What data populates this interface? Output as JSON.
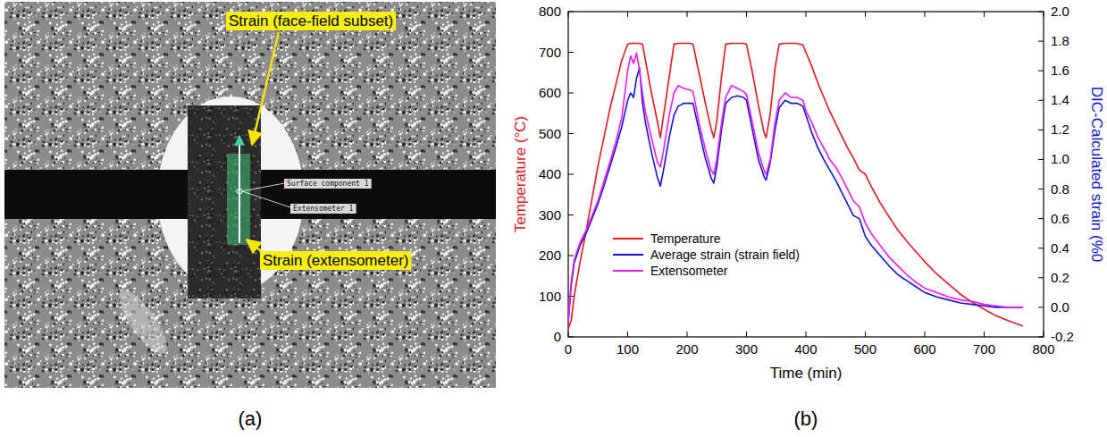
{
  "panel_labels": [
    "(a)",
    "(b)"
  ],
  "image_panel": {
    "annotations": [
      "Strain (face-field subset)",
      "Strain (extensometer)"
    ],
    "overlay_labels": [
      "Surface component 1",
      "Extensometer 1"
    ]
  },
  "chart_data": {
    "type": "line",
    "x_label": "Time (min)",
    "y_label": "Temperature (°C)",
    "y2_label": "DIC-Calculated strain (%0",
    "xlim": [
      0,
      800
    ],
    "xticks": [
      0,
      100,
      200,
      300,
      400,
      500,
      600,
      700,
      800
    ],
    "ylim": [
      0,
      800
    ],
    "yticks": [
      0,
      100,
      200,
      300,
      400,
      500,
      600,
      700,
      800
    ],
    "y2lim": [
      -0.2,
      2.0
    ],
    "y2ticks": [
      -0.2,
      {
        "value": 0,
        "label": "0.0"
      },
      0.2,
      0.4,
      0.6,
      0.8,
      {
        "value": 1,
        "label": "1.0"
      },
      1.2,
      1.4,
      1.6,
      1.8,
      {
        "value": 2,
        "label": "2.0"
      }
    ],
    "legend": "lower left",
    "x": [
      0,
      5,
      10,
      20,
      30,
      40,
      50,
      60,
      70,
      80,
      90,
      100,
      105,
      110,
      115,
      120,
      125,
      130,
      140,
      150,
      155,
      160,
      170,
      178,
      185,
      195,
      205,
      210,
      220,
      230,
      240,
      245,
      250,
      258,
      265,
      275,
      285,
      295,
      300,
      310,
      320,
      330,
      333,
      340,
      348,
      355,
      365,
      375,
      385,
      395,
      400,
      410,
      420,
      430,
      440,
      450,
      460,
      470,
      480,
      490,
      500,
      510,
      525,
      540,
      555,
      570,
      585,
      600,
      620,
      640,
      660,
      680,
      700,
      720,
      740,
      765
    ],
    "series": [
      {
        "name": "Temperature",
        "color": "#e8161b",
        "axis": "y",
        "values": [
          20,
          40,
          100,
          185,
          260,
          340,
          420,
          490,
          560,
          620,
          680,
          720,
          722,
          722,
          722,
          722,
          720,
          680,
          600,
          530,
          490,
          540,
          640,
          720,
          722,
          722,
          722,
          720,
          650,
          580,
          515,
          490,
          530,
          640,
          720,
          722,
          722,
          722,
          720,
          650,
          570,
          500,
          490,
          550,
          660,
          720,
          722,
          722,
          722,
          718,
          700,
          665,
          625,
          590,
          555,
          525,
          495,
          465,
          440,
          410,
          400,
          370,
          330,
          295,
          262,
          235,
          210,
          185,
          155,
          130,
          105,
          85,
          68,
          52,
          40,
          27
        ]
      },
      {
        "name": "Average strain (strain field)",
        "color": "#1010e0",
        "axis": "y2",
        "values": [
          -0.1,
          0.15,
          0.3,
          0.42,
          0.5,
          0.6,
          0.7,
          0.82,
          0.95,
          1.08,
          1.22,
          1.4,
          1.45,
          1.42,
          1.55,
          1.62,
          1.38,
          1.25,
          1.05,
          0.88,
          0.82,
          0.92,
          1.15,
          1.3,
          1.36,
          1.38,
          1.38,
          1.38,
          1.2,
          1.02,
          0.88,
          0.84,
          0.95,
          1.2,
          1.38,
          1.42,
          1.43,
          1.42,
          1.4,
          1.2,
          1.0,
          0.88,
          0.86,
          0.98,
          1.2,
          1.35,
          1.4,
          1.38,
          1.38,
          1.36,
          1.3,
          1.18,
          1.08,
          1.0,
          0.93,
          0.86,
          0.78,
          0.7,
          0.62,
          0.6,
          0.48,
          0.42,
          0.35,
          0.28,
          0.22,
          0.18,
          0.14,
          0.1,
          0.07,
          0.05,
          0.03,
          0.02,
          0.01,
          0.0,
          0.0,
          0.0
        ]
      },
      {
        "name": "Extensometer",
        "color": "#f019f0",
        "axis": "y2",
        "values": [
          -0.1,
          0.18,
          0.32,
          0.44,
          0.52,
          0.62,
          0.72,
          0.85,
          0.98,
          1.12,
          1.28,
          1.6,
          1.7,
          1.65,
          1.72,
          1.6,
          1.45,
          1.32,
          1.15,
          0.98,
          0.95,
          1.05,
          1.3,
          1.45,
          1.5,
          1.48,
          1.47,
          1.46,
          1.25,
          1.08,
          0.93,
          0.9,
          1.0,
          1.25,
          1.42,
          1.5,
          1.48,
          1.46,
          1.44,
          1.25,
          1.05,
          0.92,
          0.9,
          1.0,
          1.25,
          1.4,
          1.45,
          1.42,
          1.42,
          1.4,
          1.33,
          1.25,
          1.15,
          1.08,
          1.0,
          0.95,
          0.88,
          0.8,
          0.72,
          0.68,
          0.57,
          0.5,
          0.42,
          0.34,
          0.28,
          0.22,
          0.17,
          0.13,
          0.1,
          0.07,
          0.05,
          0.04,
          0.02,
          0.01,
          0.0,
          0.0
        ]
      }
    ]
  }
}
